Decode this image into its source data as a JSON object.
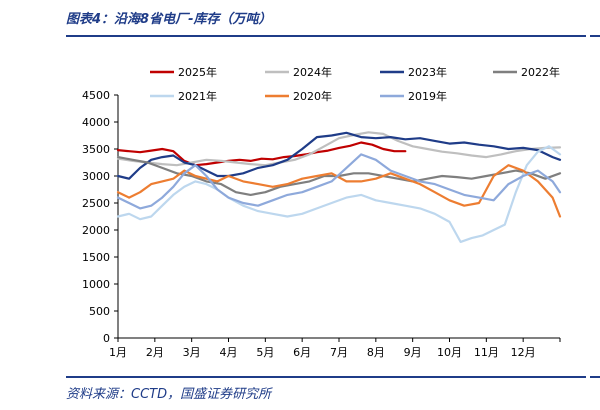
{
  "figure": {
    "title": "图表4：沿海8省电厂-库存（万吨）",
    "source": "资料来源：CCTD，国盛证券研究所"
  },
  "chart_data": {
    "type": "line",
    "title": "沿海8省电厂-库存（万吨）",
    "xlabel": "",
    "ylabel": "",
    "ylim": [
      0,
      4500
    ],
    "yticks": [
      "0",
      "500",
      "1000",
      "1500",
      "2000",
      "2500",
      "3000",
      "3500",
      "4000",
      "4500"
    ],
    "xlim": [
      0,
      12
    ],
    "xticks": [
      "1月",
      "2月",
      "3月",
      "4月",
      "5月",
      "6月",
      "7月",
      "8月",
      "9月",
      "10月",
      "11月",
      "12月"
    ],
    "legend_position": "top",
    "series": [
      {
        "name": "2025年",
        "color": "#c00000",
        "width": 2.2,
        "x": [
          0,
          0.3,
          0.6,
          0.9,
          1.2,
          1.5,
          1.8,
          2.1,
          2.4,
          2.7,
          3.0,
          3.3,
          3.6,
          3.9,
          4.2,
          4.5,
          4.8,
          5.1,
          5.4,
          5.7,
          6.0,
          6.3,
          6.6,
          6.9,
          7.2,
          7.5,
          7.8
        ],
        "y": [
          3480,
          3460,
          3440,
          3470,
          3500,
          3460,
          3280,
          3200,
          3220,
          3250,
          3280,
          3300,
          3280,
          3320,
          3310,
          3350,
          3370,
          3400,
          3440,
          3470,
          3520,
          3560,
          3620,
          3580,
          3500,
          3460,
          3460
        ]
      },
      {
        "name": "2024年",
        "color": "#bfbfbf",
        "width": 2.2,
        "x": [
          0,
          0.4,
          0.8,
          1.2,
          1.6,
          2.0,
          2.4,
          2.8,
          3.2,
          3.6,
          4.0,
          4.4,
          4.8,
          5.2,
          5.6,
          6.0,
          6.4,
          6.8,
          7.2,
          7.6,
          8.0,
          8.4,
          8.8,
          9.2,
          9.6,
          10.0,
          10.4,
          10.8,
          11.2,
          11.6,
          12.0
        ],
        "y": [
          3320,
          3280,
          3250,
          3220,
          3200,
          3250,
          3300,
          3280,
          3250,
          3220,
          3200,
          3250,
          3300,
          3400,
          3550,
          3700,
          3760,
          3810,
          3780,
          3650,
          3550,
          3500,
          3450,
          3420,
          3380,
          3350,
          3400,
          3460,
          3500,
          3520,
          3530
        ]
      },
      {
        "name": "2023年",
        "color": "#1f3c88",
        "width": 2.2,
        "x": [
          0,
          0.3,
          0.6,
          0.9,
          1.2,
          1.5,
          1.8,
          2.1,
          2.4,
          2.7,
          3.0,
          3.4,
          3.8,
          4.2,
          4.6,
          5.0,
          5.4,
          5.8,
          6.2,
          6.6,
          7.0,
          7.4,
          7.8,
          8.2,
          8.6,
          9.0,
          9.4,
          9.8,
          10.2,
          10.6,
          11.0,
          11.4,
          11.8,
          12.0
        ],
        "y": [
          3000,
          2950,
          3150,
          3300,
          3350,
          3380,
          3250,
          3200,
          3100,
          3000,
          3000,
          3050,
          3150,
          3200,
          3300,
          3500,
          3720,
          3750,
          3800,
          3720,
          3700,
          3720,
          3680,
          3700,
          3650,
          3600,
          3620,
          3580,
          3550,
          3500,
          3520,
          3480,
          3350,
          3300
        ]
      },
      {
        "name": "2022年",
        "color": "#7f7f7f",
        "width": 2.2,
        "x": [
          0,
          0.4,
          0.8,
          1.2,
          1.6,
          2.0,
          2.4,
          2.8,
          3.2,
          3.6,
          4.0,
          4.4,
          4.8,
          5.2,
          5.6,
          6.0,
          6.4,
          6.8,
          7.2,
          7.6,
          8.0,
          8.4,
          8.8,
          9.2,
          9.6,
          10.0,
          10.4,
          10.8,
          11.2,
          11.6,
          12.0
        ],
        "y": [
          3350,
          3300,
          3250,
          3150,
          3050,
          3000,
          2900,
          2850,
          2700,
          2650,
          2700,
          2800,
          2850,
          2900,
          3000,
          3000,
          3050,
          3050,
          3000,
          2950,
          2900,
          2950,
          3000,
          2980,
          2950,
          3000,
          3050,
          3100,
          3050,
          2950,
          3050
        ]
      },
      {
        "name": "2021年",
        "color": "#bdd7ee",
        "width": 2.2,
        "x": [
          0,
          0.3,
          0.6,
          0.9,
          1.2,
          1.5,
          1.8,
          2.1,
          2.4,
          2.7,
          3.0,
          3.4,
          3.8,
          4.2,
          4.6,
          5.0,
          5.4,
          5.8,
          6.2,
          6.6,
          7.0,
          7.4,
          7.8,
          8.2,
          8.6,
          9.0,
          9.3,
          9.6,
          9.9,
          10.2,
          10.5,
          10.8,
          11.1,
          11.4,
          11.7,
          12.0
        ],
        "y": [
          2250,
          2300,
          2200,
          2250,
          2450,
          2650,
          2800,
          2900,
          2850,
          2750,
          2600,
          2450,
          2350,
          2300,
          2250,
          2300,
          2400,
          2500,
          2600,
          2650,
          2550,
          2500,
          2450,
          2400,
          2300,
          2150,
          1780,
          1850,
          1900,
          2000,
          2100,
          2700,
          3200,
          3450,
          3550,
          3400
        ]
      },
      {
        "name": "2020年",
        "color": "#ed7d31",
        "width": 2.2,
        "x": [
          0,
          0.3,
          0.6,
          0.9,
          1.2,
          1.5,
          1.8,
          2.1,
          2.4,
          2.7,
          3.0,
          3.4,
          3.8,
          4.2,
          4.6,
          5.0,
          5.4,
          5.8,
          6.2,
          6.6,
          7.0,
          7.4,
          7.8,
          8.2,
          8.6,
          9.0,
          9.4,
          9.8,
          10.2,
          10.6,
          11.0,
          11.4,
          11.8,
          12.0
        ],
        "y": [
          2700,
          2600,
          2700,
          2850,
          2900,
          2950,
          3100,
          3000,
          2950,
          2900,
          3000,
          2900,
          2850,
          2800,
          2850,
          2950,
          3000,
          3050,
          2900,
          2900,
          2950,
          3050,
          2950,
          2850,
          2700,
          2550,
          2450,
          2500,
          3000,
          3200,
          3100,
          2900,
          2600,
          2250
        ]
      },
      {
        "name": "2019年",
        "color": "#8ea9db",
        "width": 2.2,
        "x": [
          0,
          0.3,
          0.6,
          0.9,
          1.2,
          1.5,
          1.8,
          2.1,
          2.4,
          2.7,
          3.0,
          3.4,
          3.8,
          4.2,
          4.6,
          5.0,
          5.4,
          5.8,
          6.2,
          6.6,
          7.0,
          7.4,
          7.8,
          8.2,
          8.6,
          9.0,
          9.4,
          9.8,
          10.2,
          10.6,
          11.0,
          11.4,
          11.8,
          12.0
        ],
        "y": [
          2600,
          2500,
          2400,
          2450,
          2600,
          2800,
          3050,
          3200,
          3000,
          2750,
          2600,
          2500,
          2450,
          2550,
          2650,
          2700,
          2800,
          2900,
          3150,
          3400,
          3300,
          3100,
          3000,
          2900,
          2850,
          2750,
          2650,
          2600,
          2550,
          2850,
          3000,
          3100,
          2900,
          2700
        ]
      }
    ]
  }
}
